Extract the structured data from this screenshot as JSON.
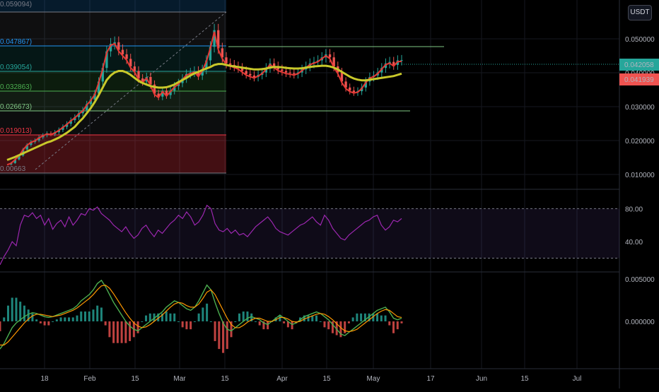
{
  "currency": "USDT",
  "colors": {
    "background": "#000000",
    "grid": "#16181f",
    "candle_up": "#26a69a",
    "candle_down": "#ef5350",
    "ema_fast": "#e53935",
    "ma_slow": "#c8c82a",
    "rsi": "#9c27b0",
    "macd": "#4caf50",
    "signal": "#ff9800",
    "price_badge": "#26a69a",
    "ma_badge": "#ef5350"
  },
  "chart_data": [
    {
      "type": "candlestick",
      "pane": "price",
      "y_ticks": [
        "0.050000",
        "0.040000",
        "0.030000",
        "0.020000",
        "0.010000"
      ],
      "x_ticks": [
        "18",
        "Feb",
        "15",
        "Mar",
        "15",
        "Apr",
        "15",
        "May",
        "17",
        "Jun",
        "15",
        "Jul"
      ],
      "last_price": "0.042058",
      "ma_value": "0.041939",
      "fib_levels": [
        {
          "label": "0.059094)",
          "value": 0.059094,
          "color": "#787b86"
        },
        {
          "label": "0.047867)",
          "value": 0.047867,
          "color": "#2196f3"
        },
        {
          "label": "0.039054)",
          "value": 0.039054,
          "color": "#26a69a"
        },
        {
          "label": "0.032863)",
          "value": 0.032863,
          "color": "#4caf50"
        },
        {
          "label": "0.026673)",
          "value": 0.026673,
          "color": "#81c784"
        },
        {
          "label": "0.019013)",
          "value": 0.019013,
          "color": "#f23645"
        },
        {
          "label": "0.00663",
          "value": 0.00663,
          "color": "#787b86"
        }
      ],
      "close_series": [
        0.0075,
        0.008,
        0.0092,
        0.0105,
        0.0125,
        0.014,
        0.015,
        0.0155,
        0.0165,
        0.0172,
        0.0178,
        0.0176,
        0.0182,
        0.019,
        0.02,
        0.021,
        0.0222,
        0.0232,
        0.0245,
        0.0255,
        0.0275,
        0.029,
        0.031,
        0.035,
        0.0395,
        0.045,
        0.0475,
        0.048,
        0.0455,
        0.044,
        0.0425,
        0.04,
        0.0385,
        0.036,
        0.035,
        0.0365,
        0.034,
        0.031,
        0.03,
        0.032,
        0.0305,
        0.032,
        0.0335,
        0.0345,
        0.036,
        0.0375,
        0.038,
        0.0385,
        0.037,
        0.039,
        0.042,
        0.0465,
        0.052,
        0.046,
        0.043,
        0.041,
        0.0405,
        0.04,
        0.0395,
        0.0385,
        0.0375,
        0.037,
        0.0365,
        0.0372,
        0.038,
        0.0395,
        0.041,
        0.04,
        0.039,
        0.0385,
        0.038,
        0.0378,
        0.0375,
        0.038,
        0.039,
        0.04,
        0.041,
        0.0415,
        0.042,
        0.043,
        0.044,
        0.043,
        0.04,
        0.038,
        0.035,
        0.033,
        0.032,
        0.0315,
        0.0318,
        0.033,
        0.035,
        0.0365,
        0.037,
        0.038,
        0.0395,
        0.041,
        0.0415,
        0.0405,
        0.042,
        0.0421
      ],
      "ma_series": [
        0.009,
        0.0095,
        0.01,
        0.0106,
        0.0112,
        0.0118,
        0.0124,
        0.013,
        0.0136,
        0.0142,
        0.0148,
        0.0152,
        0.0158,
        0.0164,
        0.0172,
        0.018,
        0.019,
        0.02,
        0.0215,
        0.0228,
        0.0245,
        0.0262,
        0.0282,
        0.0305,
        0.033,
        0.0355,
        0.037,
        0.038,
        0.0385,
        0.0385,
        0.038,
        0.0372,
        0.0362,
        0.0352,
        0.0345,
        0.034,
        0.0335,
        0.0332,
        0.033,
        0.033,
        0.0331,
        0.0335,
        0.034,
        0.0348,
        0.0355,
        0.0362,
        0.037,
        0.0377,
        0.0382,
        0.0388,
        0.0393,
        0.0398,
        0.0405,
        0.0408,
        0.0408,
        0.0405,
        0.0402,
        0.04,
        0.0398,
        0.0396,
        0.0394,
        0.0392,
        0.039,
        0.039,
        0.0391,
        0.0393,
        0.0396,
        0.0398,
        0.0398,
        0.0397,
        0.0395,
        0.0394,
        0.0393,
        0.0393,
        0.0394,
        0.0396,
        0.0398,
        0.04,
        0.0401,
        0.0402,
        0.0402,
        0.04,
        0.0396,
        0.039,
        0.0382,
        0.0374,
        0.0366,
        0.036,
        0.0356,
        0.0354,
        0.0354,
        0.0356,
        0.0358,
        0.036,
        0.0362,
        0.0364,
        0.0366,
        0.0368,
        0.0372,
        0.0376
      ],
      "ylim": [
        0.0,
        0.062
      ]
    },
    {
      "type": "line",
      "pane": "rsi",
      "y_ticks": [
        "80.00",
        "40.00"
      ],
      "band": [
        20,
        80
      ],
      "ylim": [
        5,
        100
      ],
      "values": [
        12,
        22,
        30,
        40,
        35,
        60,
        72,
        70,
        75,
        68,
        72,
        60,
        68,
        55,
        62,
        66,
        58,
        70,
        60,
        66,
        74,
        72,
        80,
        78,
        82,
        74,
        70,
        66,
        60,
        56,
        52,
        58,
        50,
        44,
        48,
        56,
        60,
        52,
        46,
        54,
        50,
        56,
        62,
        66,
        72,
        68,
        76,
        70,
        60,
        64,
        72,
        84,
        80,
        62,
        54,
        52,
        56,
        50,
        54,
        48,
        50,
        46,
        52,
        58,
        62,
        66,
        70,
        64,
        56,
        52,
        50,
        48,
        52,
        56,
        60,
        62,
        66,
        70,
        64,
        60,
        72,
        66,
        56,
        50,
        44,
        42,
        48,
        52,
        56,
        60,
        64,
        66,
        70,
        72,
        60,
        54,
        58,
        66,
        64,
        68
      ]
    },
    {
      "type": "line",
      "pane": "macd",
      "y_ticks": [
        "0.005000",
        "0.000000"
      ],
      "ylim": [
        -0.006,
        0.006
      ],
      "macd": [
        -0.0035,
        -0.0028,
        -0.0018,
        -0.0008,
        -0.0002,
        0.0002,
        0.0006,
        0.0009,
        0.0011,
        0.001,
        0.0008,
        0.0006,
        0.0005,
        0.0006,
        0.0008,
        0.001,
        0.0012,
        0.0014,
        0.0016,
        0.002,
        0.0026,
        0.003,
        0.0034,
        0.004,
        0.0048,
        0.0052,
        0.0044,
        0.0034,
        0.0024,
        0.0016,
        0.0008,
        0.0,
        -0.0006,
        -0.001,
        -0.0012,
        -0.0008,
        -0.0004,
        0.0,
        0.0004,
        0.0008,
        0.0012,
        0.0018,
        0.0022,
        0.0026,
        0.0024,
        0.002,
        0.0016,
        0.0014,
        0.0018,
        0.0026,
        0.0036,
        0.0046,
        0.004,
        0.0024,
        0.001,
        -0.0002,
        -0.001,
        -0.0012,
        -0.0008,
        -0.0004,
        0.0,
        0.0004,
        0.0006,
        0.0004,
        0.0002,
        -0.0002,
        -0.0004,
        0.0,
        0.0004,
        0.0008,
        0.0004,
        0.0,
        -0.0004,
        -0.0002,
        0.0002,
        0.0006,
        0.0008,
        0.001,
        0.0012,
        0.001,
        0.0006,
        0.0002,
        -0.0004,
        -0.001,
        -0.0016,
        -0.0018,
        -0.0014,
        -0.001,
        -0.0006,
        -0.0002,
        0.0002,
        0.0006,
        0.001,
        0.0014,
        0.0016,
        0.0018,
        0.0012,
        0.0004,
        0.0002,
        0.0004
      ],
      "signal": [
        -0.003,
        -0.003,
        -0.0026,
        -0.002,
        -0.0014,
        -0.0008,
        -0.0002,
        0.0003,
        0.0007,
        0.0009,
        0.0009,
        0.0008,
        0.0007,
        0.0006,
        0.0007,
        0.0008,
        0.001,
        0.0012,
        0.0014,
        0.0017,
        0.0021,
        0.0025,
        0.0029,
        0.0034,
        0.004,
        0.0045,
        0.0046,
        0.0042,
        0.0035,
        0.0027,
        0.0019,
        0.0011,
        0.0004,
        -0.0002,
        -0.0006,
        -0.0008,
        -0.0007,
        -0.0004,
        0.0,
        0.0004,
        0.0008,
        0.0013,
        0.0018,
        0.0022,
        0.0024,
        0.0023,
        0.002,
        0.0018,
        0.0018,
        0.0022,
        0.0029,
        0.0037,
        0.004,
        0.0034,
        0.0024,
        0.0014,
        0.0004,
        -0.0004,
        -0.0008,
        -0.0008,
        -0.0005,
        -0.0001,
        0.0002,
        0.0004,
        0.0004,
        0.0002,
        0.0,
        0.0,
        0.0002,
        0.0005,
        0.0005,
        0.0003,
        0.0,
        -0.0001,
        0.0,
        0.0003,
        0.0005,
        0.0007,
        0.0009,
        0.001,
        0.0009,
        0.0006,
        0.0002,
        -0.0003,
        -0.0008,
        -0.0012,
        -0.0013,
        -0.0012,
        -0.001,
        -0.0006,
        -0.0002,
        0.0002,
        0.0006,
        0.001,
        0.0013,
        0.0015,
        0.0014,
        0.001,
        0.0006,
        0.0005
      ]
    }
  ]
}
